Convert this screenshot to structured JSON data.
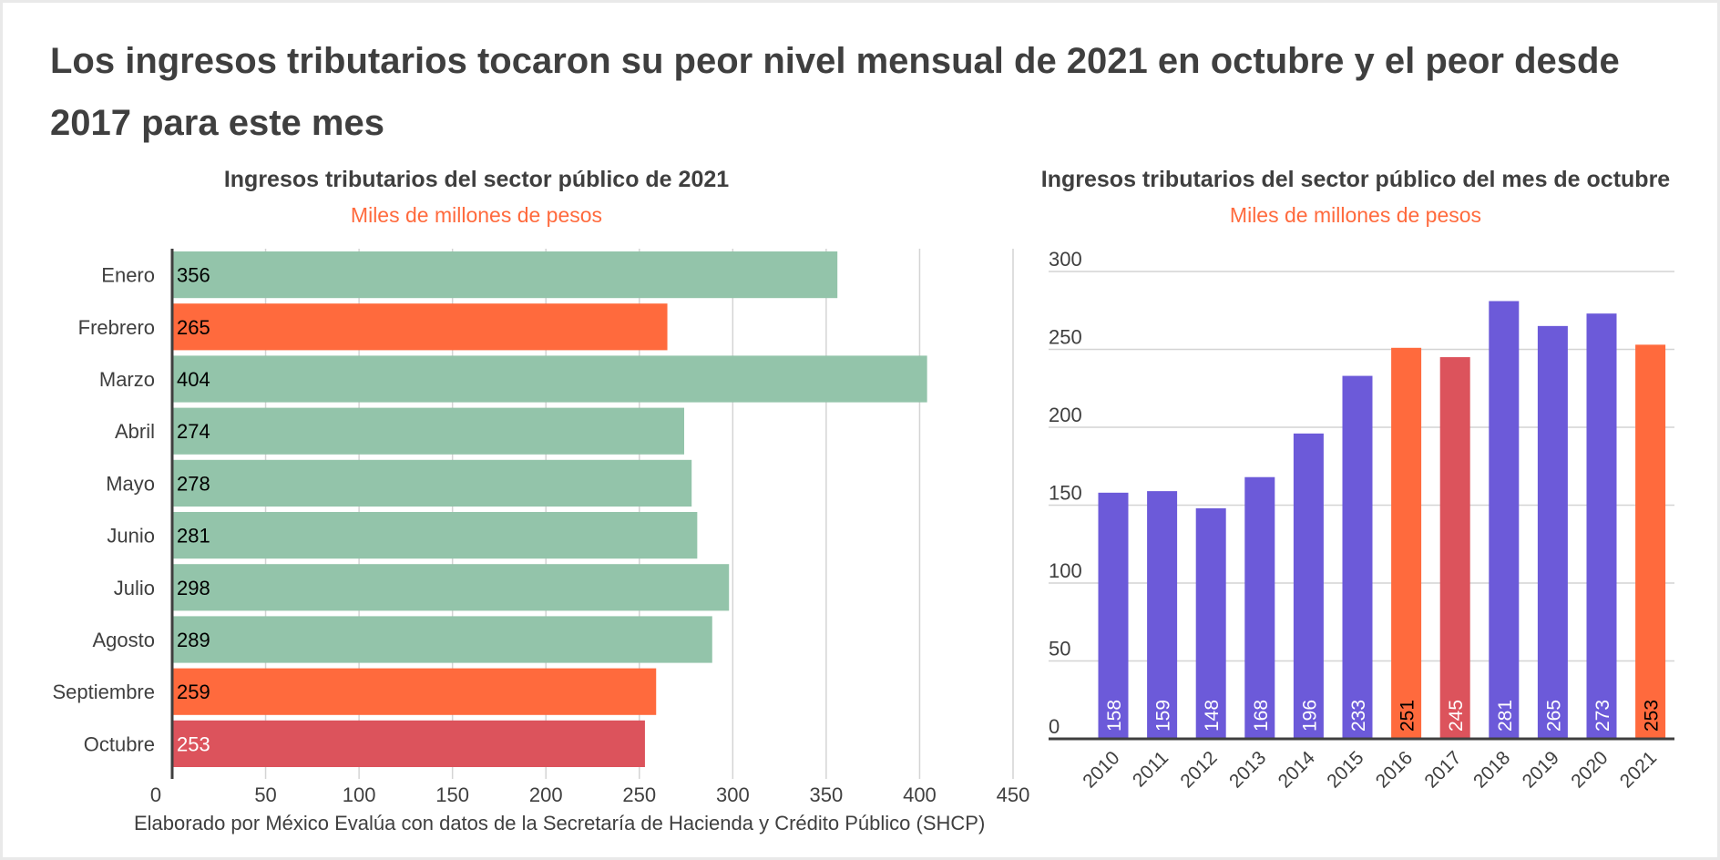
{
  "title": "Los ingresos tributarios tocaron su peor nivel mensual de 2021 en octubre y el peor desde 2017 para este mes",
  "footer": "Elaborado por México Evalúa con datos de la Secretaría de Hacienda y Crédito Público (SHCP)",
  "colors": {
    "green": "#93c4aa",
    "orange": "#ff6a3d",
    "red": "#dc535c",
    "purple": "#6c5ad9",
    "subtitle": "#ff6a3d"
  },
  "chart_data": [
    {
      "type": "bar",
      "orientation": "horizontal",
      "title": "Ingresos tributarios del sector público de 2021",
      "subtitle": "Miles de millones de pesos",
      "categories": [
        "Enero",
        "Frebrero",
        "Marzo",
        "Abril",
        "Mayo",
        "Junio",
        "Julio",
        "Agosto",
        "Septiembre",
        "Octubre"
      ],
      "values": [
        356,
        265,
        404,
        274,
        278,
        281,
        298,
        289,
        259,
        253
      ],
      "labels": [
        "356",
        "265",
        "404",
        "274",
        "278",
        "281",
        "298",
        "289",
        "259",
        "253"
      ],
      "bar_colors": [
        "green",
        "orange",
        "green",
        "green",
        "green",
        "green",
        "green",
        "green",
        "orange",
        "red"
      ],
      "xlim": [
        0,
        450
      ],
      "xticks": [
        "0",
        "50",
        "100",
        "150",
        "200",
        "250",
        "300",
        "350",
        "400",
        "450"
      ],
      "grid": true
    },
    {
      "type": "bar",
      "orientation": "vertical",
      "title": "Ingresos tributarios del sector público del mes de octubre",
      "subtitle": "Miles de millones de pesos",
      "categories": [
        "2010",
        "2011",
        "2012",
        "2013",
        "2014",
        "2015",
        "2016",
        "2017",
        "2018",
        "2019",
        "2020",
        "2021"
      ],
      "values": [
        158,
        159,
        148,
        168,
        196,
        233,
        251,
        245,
        281,
        265,
        273,
        253
      ],
      "labels": [
        "158",
        "159",
        "148",
        "168",
        "196",
        "233",
        "251",
        "245",
        "281",
        "265",
        "273",
        "253"
      ],
      "bar_colors": [
        "purple",
        "purple",
        "purple",
        "purple",
        "purple",
        "purple",
        "orange",
        "red",
        "purple",
        "purple",
        "purple",
        "orange"
      ],
      "ylim": [
        0,
        300
      ],
      "yticks": [
        "0",
        "50",
        "100",
        "150",
        "200",
        "250",
        "300"
      ],
      "grid": true
    }
  ]
}
